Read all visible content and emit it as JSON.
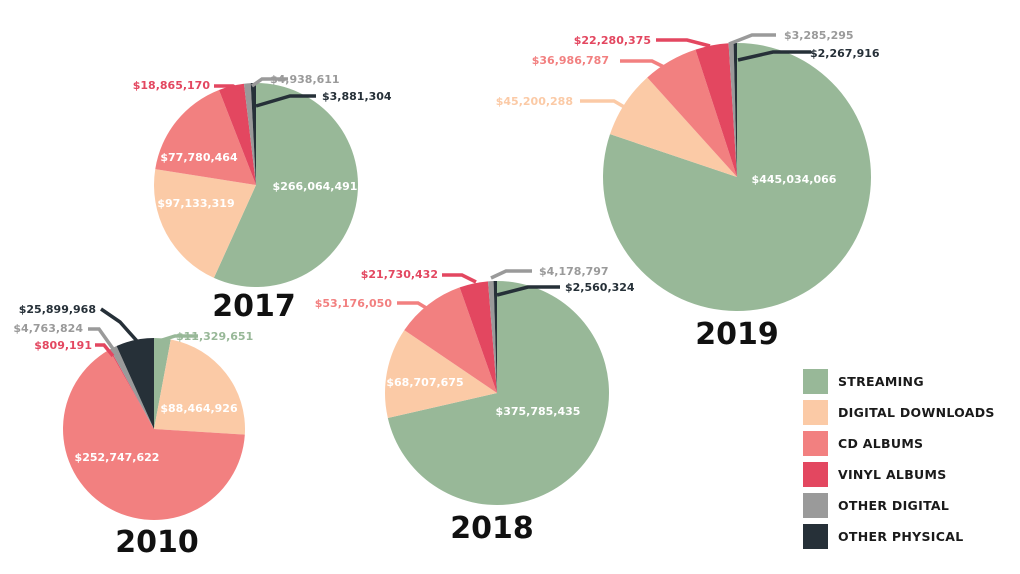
{
  "chart_data": {
    "type": "pie",
    "title": "",
    "series_names": [
      "STREAMING",
      "DIGITAL DOWNLOADS",
      "CD ALBUMS",
      "VINYL ALBUMS",
      "OTHER DIGITAL",
      "OTHER PHYSICAL"
    ],
    "colors": {
      "STREAMING": "#98b898",
      "DIGITAL DOWNLOADS": "#fbcaa6",
      "CD ALBUMS": "#f28080",
      "VINYL ALBUMS": "#e34760",
      "OTHER DIGITAL": "#9a9a9a",
      "OTHER PHYSICAL": "#263038"
    },
    "pies": [
      {
        "year": "2017",
        "slices": [
          {
            "category": "STREAMING",
            "value": 266064491,
            "label": "$266,064,491"
          },
          {
            "category": "DIGITAL DOWNLOADS",
            "value": 97133319,
            "label": "$97,133,319"
          },
          {
            "category": "CD ALBUMS",
            "value": 77780464,
            "label": "$77,780,464"
          },
          {
            "category": "VINYL ALBUMS",
            "value": 18865170,
            "label": "$18,865,170"
          },
          {
            "category": "OTHER DIGITAL",
            "value": 4938611,
            "label": "$4,938,611"
          },
          {
            "category": "OTHER PHYSICAL",
            "value": 3881304,
            "label": "$3,881,304"
          }
        ]
      },
      {
        "year": "2010",
        "slices": [
          {
            "category": "STREAMING",
            "value": 11329651,
            "label": "$11,329,651"
          },
          {
            "category": "DIGITAL DOWNLOADS",
            "value": 88464926,
            "label": "$88,464,926"
          },
          {
            "category": "CD ALBUMS",
            "value": 252747622,
            "label": "$252,747,622"
          },
          {
            "category": "VINYL ALBUMS",
            "value": 809191,
            "label": "$809,191"
          },
          {
            "category": "OTHER DIGITAL",
            "value": 4763824,
            "label": "$4,763,824"
          },
          {
            "category": "OTHER PHYSICAL",
            "value": 25899968,
            "label": "$25,899,968"
          }
        ]
      },
      {
        "year": "2018",
        "slices": [
          {
            "category": "STREAMING",
            "value": 375785435,
            "label": "$375,785,435"
          },
          {
            "category": "DIGITAL DOWNLOADS",
            "value": 68707675,
            "label": "$68,707,675"
          },
          {
            "category": "CD ALBUMS",
            "value": 53176050,
            "label": "$53,176,050"
          },
          {
            "category": "VINYL ALBUMS",
            "value": 21730432,
            "label": "$21,730,432"
          },
          {
            "category": "OTHER DIGITAL",
            "value": 4178797,
            "label": "$4,178,797"
          },
          {
            "category": "OTHER PHYSICAL",
            "value": 2560324,
            "label": "$2,560,324"
          }
        ]
      },
      {
        "year": "2019",
        "slices": [
          {
            "category": "STREAMING",
            "value": 445034066,
            "label": "$445,034,066"
          },
          {
            "category": "DIGITAL DOWNLOADS",
            "value": 45200288,
            "label": "$45,200,288"
          },
          {
            "category": "CD ALBUMS",
            "value": 36986787,
            "label": "$36,986,787"
          },
          {
            "category": "VINYL ALBUMS",
            "value": 22280375,
            "label": "$22,280,375"
          },
          {
            "category": "OTHER DIGITAL",
            "value": 3285295,
            "label": "$3,285,295"
          },
          {
            "category": "OTHER PHYSICAL",
            "value": 2267916,
            "label": "$2,267,916"
          }
        ]
      }
    ],
    "legend": {
      "placement": "bottom-right",
      "entries": [
        "STREAMING",
        "DIGITAL DOWNLOADS",
        "CD ALBUMS",
        "VINYL ALBUMS",
        "OTHER DIGITAL",
        "OTHER PHYSICAL"
      ]
    }
  }
}
